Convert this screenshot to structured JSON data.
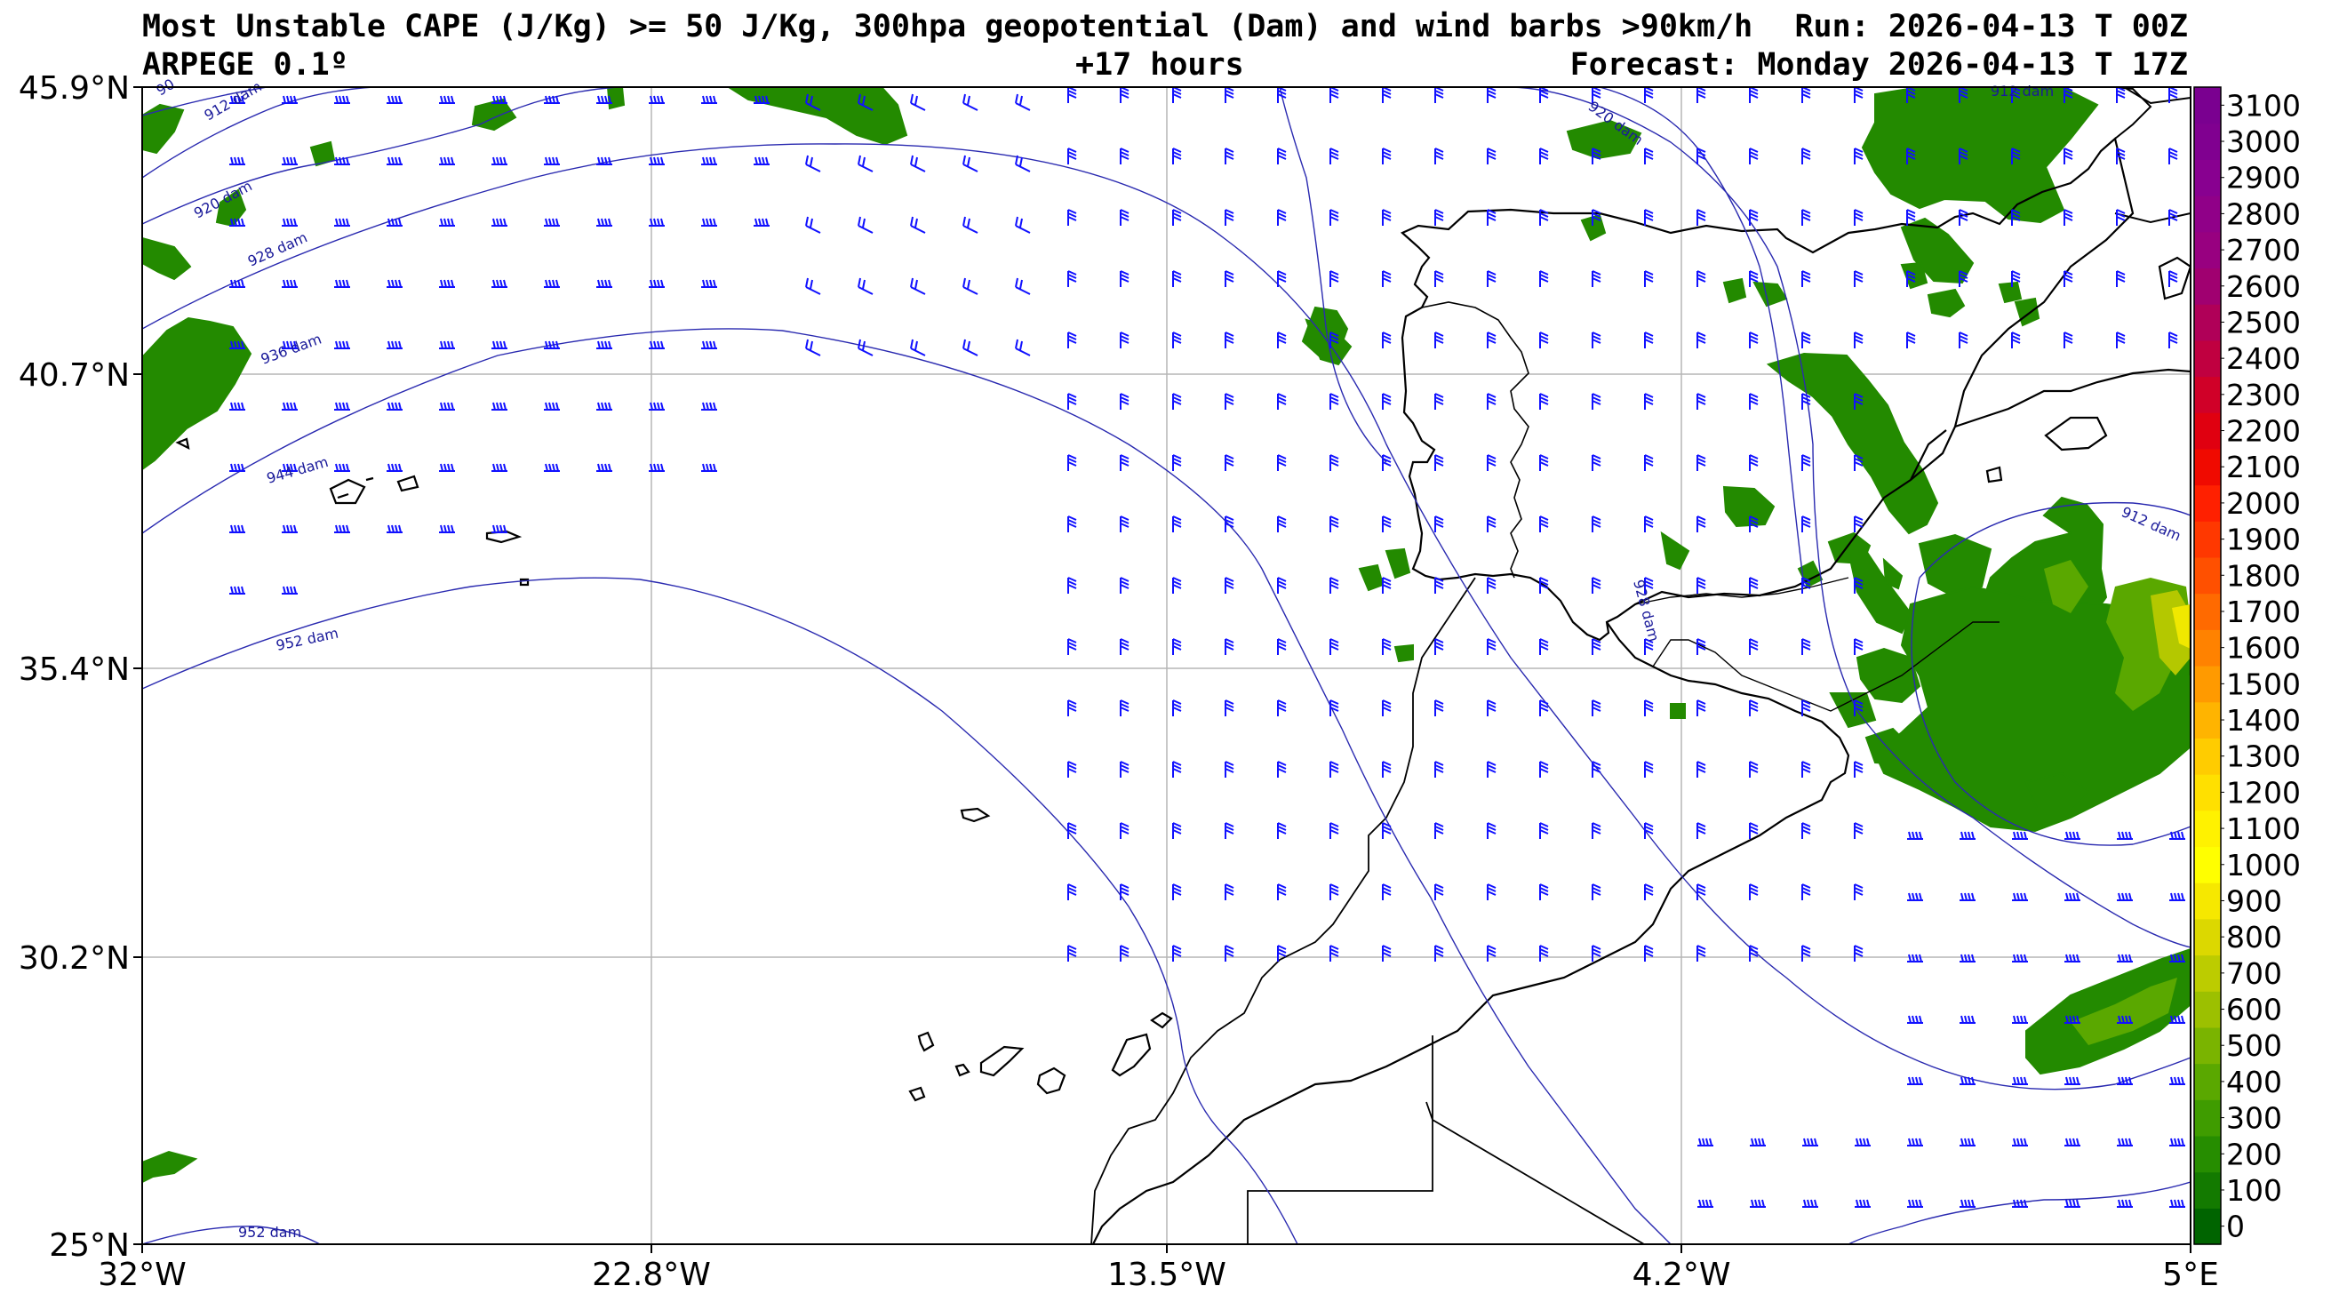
{
  "header": {
    "title_line1": "Most Unstable CAPE (J/Kg) >= 50 J/Kg, 300hpa geopotential (Dam) and wind barbs >90km/h",
    "model": "ARPEGE 0.1º",
    "lead": "+17 hours",
    "run": "Run: 2026-04-13 T 00Z",
    "forecast": "Forecast: Monday 2026-04-13 T 17Z"
  },
  "map": {
    "lat_ticks": [
      "45.9°N",
      "40.7°N",
      "35.4°N",
      "30.2°N",
      "25°N"
    ],
    "lon_ticks": [
      "32°W",
      "22.8°W",
      "13.5°W",
      "4.2°W",
      "5°E"
    ],
    "contour_labels": [
      "912 dam",
      "920 dam",
      "928 dam",
      "936 dam",
      "944 dam",
      "952 dam",
      "920 dam",
      "912 dam",
      "928 dam",
      "912 dam",
      "952 dam",
      "90"
    ],
    "colors": {
      "contour": "#2a2ab0",
      "barb": "#1010ff",
      "coast": "#000000",
      "grid": "#b0b0b0",
      "cape_low": "#1e8a00",
      "cape_mid": "#5aa800"
    }
  },
  "colorbar": {
    "ticks": [
      "0",
      "100",
      "200",
      "300",
      "400",
      "500",
      "600",
      "700",
      "800",
      "900",
      "1000",
      "1100",
      "1200",
      "1300",
      "1400",
      "1500",
      "1600",
      "1700",
      "1800",
      "1900",
      "2000",
      "2100",
      "2200",
      "2300",
      "2400",
      "2500",
      "2600",
      "2700",
      "2800",
      "2900",
      "3000",
      "3100"
    ],
    "colors": [
      "#006400",
      "#137a00",
      "#268d00",
      "#3f9c00",
      "#5aa800",
      "#7ab400",
      "#9cc000",
      "#bccc00",
      "#dcd800",
      "#f6e800",
      "#ffff00",
      "#fff200",
      "#ffe000",
      "#ffcc00",
      "#ffb400",
      "#ff9a00",
      "#ff8200",
      "#ff6a00",
      "#ff5000",
      "#ff3800",
      "#ff2000",
      "#f00a00",
      "#e00010",
      "#d00028",
      "#c00040",
      "#b00058",
      "#a00070",
      "#980080",
      "#900088",
      "#880090",
      "#800090",
      "#7a0090"
    ]
  }
}
